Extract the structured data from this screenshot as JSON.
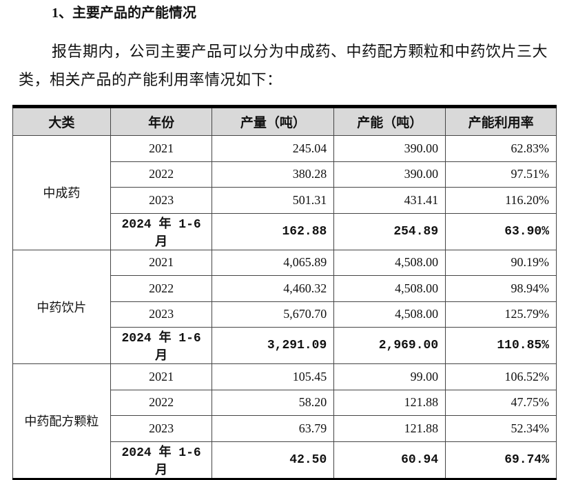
{
  "document": {
    "heading": "1、主要产品的产能情况",
    "paragraph": "报告期内，公司主要产品可以分为中成药、中药配方颗粒和中药饮片三大类，相关产品的产能利用率情况如下：",
    "table": {
      "headers": [
        "大类",
        "年份",
        "产量（吨）",
        "产能（吨）",
        "产能利用率"
      ],
      "groups": [
        {
          "name": "中成药",
          "rows": [
            [
              "2021",
              "245.04",
              "390.00",
              "62.83%"
            ],
            [
              "2022",
              "380.28",
              "390.00",
              "97.51%"
            ],
            [
              "2023",
              "501.31",
              "431.41",
              "116.20%"
            ],
            [
              "2024 年 1-6 月",
              "162.88",
              "254.89",
              "63.90%"
            ]
          ]
        },
        {
          "name": "中药饮片",
          "rows": [
            [
              "2021",
              "4,065.89",
              "4,508.00",
              "90.19%"
            ],
            [
              "2022",
              "4,460.32",
              "4,508.00",
              "98.94%"
            ],
            [
              "2023",
              "5,670.70",
              "4,508.00",
              "125.79%"
            ],
            [
              "2024 年 1-6 月",
              "3,291.09",
              "2,969.00",
              "110.85%"
            ]
          ]
        },
        {
          "name": "中药配方颗粒",
          "rows": [
            [
              "2021",
              "105.45",
              "99.00",
              "106.52%"
            ],
            [
              "2022",
              "58.20",
              "121.88",
              "47.75%"
            ],
            [
              "2023",
              "63.79",
              "121.88",
              "52.34%"
            ],
            [
              "2024 年 1-6 月",
              "42.50",
              "60.94",
              "69.74%"
            ]
          ]
        }
      ]
    }
  }
}
